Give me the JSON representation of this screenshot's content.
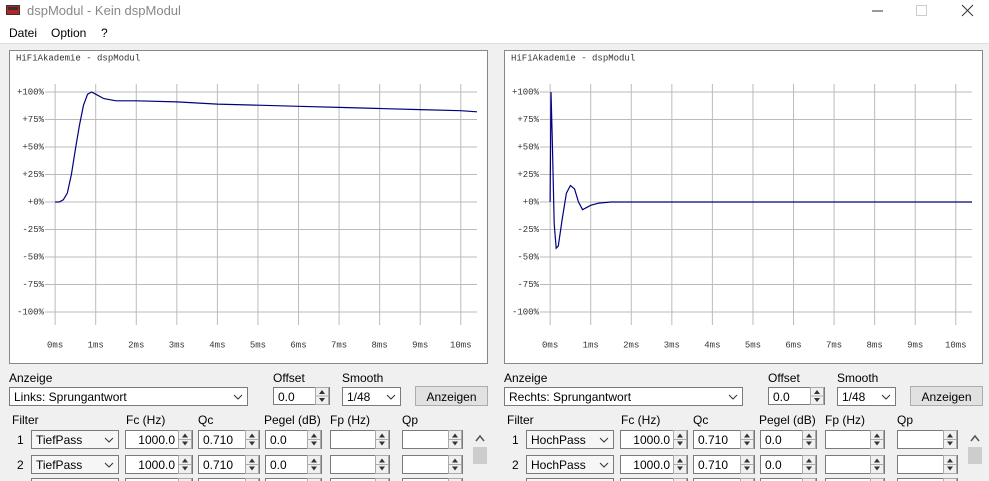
{
  "window": {
    "title": "dspModul - Kein dspModul"
  },
  "menu": [
    "Datei",
    "Option",
    "?"
  ],
  "chart_data": [
    {
      "type": "line",
      "title": "HiFiAkademie - dspModul",
      "color": "#000080",
      "grid": true,
      "x": [
        0,
        0.1,
        0.2,
        0.3,
        0.4,
        0.5,
        0.6,
        0.7,
        0.8,
        0.9,
        1.0,
        1.2,
        1.5,
        2,
        3,
        4,
        5,
        6,
        7,
        8,
        9,
        10,
        10.4
      ],
      "values": [
        0,
        0,
        2,
        8,
        25,
        48,
        70,
        88,
        98,
        100,
        98,
        94,
        92,
        92,
        91,
        89,
        88,
        87,
        86,
        85,
        84,
        83,
        82
      ],
      "xlim": [
        -0.25,
        10.4
      ],
      "ylim": [
        -110,
        110
      ],
      "xticks": [
        {
          "value": 0,
          "label": "0ms"
        },
        {
          "value": 1,
          "label": "1ms"
        },
        {
          "value": 2,
          "label": "2ms"
        },
        {
          "value": 3,
          "label": "3ms"
        },
        {
          "value": 4,
          "label": "4ms"
        },
        {
          "value": 5,
          "label": "5ms"
        },
        {
          "value": 6,
          "label": "6ms"
        },
        {
          "value": 7,
          "label": "7ms"
        },
        {
          "value": 8,
          "label": "8ms"
        },
        {
          "value": 9,
          "label": "9ms"
        },
        {
          "value": 10,
          "label": "10ms"
        }
      ],
      "yticks": [
        {
          "value": 100,
          "label": "+100%"
        },
        {
          "value": 75,
          "label": "+75%"
        },
        {
          "value": 50,
          "label": "+50%"
        },
        {
          "value": 25,
          "label": "+25%"
        },
        {
          "value": 0,
          "label": "+0%"
        },
        {
          "value": -25,
          "label": "-25%"
        },
        {
          "value": -50,
          "label": "-50%"
        },
        {
          "value": -75,
          "label": "-75%"
        },
        {
          "value": -100,
          "label": "-100%"
        }
      ]
    },
    {
      "type": "line",
      "title": "HiFiAkademie - dspModul",
      "color": "#000080",
      "grid": true,
      "x": [
        0,
        0.02,
        0.05,
        0.1,
        0.15,
        0.2,
        0.3,
        0.4,
        0.5,
        0.6,
        0.7,
        0.8,
        1.0,
        1.2,
        1.5,
        3,
        5,
        7,
        9,
        10.4
      ],
      "values": [
        0,
        100,
        60,
        -20,
        -42,
        -40,
        -15,
        8,
        15,
        12,
        0,
        -7,
        -3,
        -1,
        0,
        0,
        0,
        0,
        0,
        0
      ],
      "xlim": [
        -0.25,
        10.4
      ],
      "ylim": [
        -110,
        110
      ],
      "xticks": [
        {
          "value": 0,
          "label": "0ms"
        },
        {
          "value": 1,
          "label": "1ms"
        },
        {
          "value": 2,
          "label": "2ms"
        },
        {
          "value": 3,
          "label": "3ms"
        },
        {
          "value": 4,
          "label": "4ms"
        },
        {
          "value": 5,
          "label": "5ms"
        },
        {
          "value": 6,
          "label": "6ms"
        },
        {
          "value": 7,
          "label": "7ms"
        },
        {
          "value": 8,
          "label": "8ms"
        },
        {
          "value": 9,
          "label": "9ms"
        },
        {
          "value": 10,
          "label": "10ms"
        }
      ],
      "yticks": [
        {
          "value": 100,
          "label": "+100%"
        },
        {
          "value": 75,
          "label": "+75%"
        },
        {
          "value": 50,
          "label": "+50%"
        },
        {
          "value": 25,
          "label": "+25%"
        },
        {
          "value": 0,
          "label": "+0%"
        },
        {
          "value": -25,
          "label": "-25%"
        },
        {
          "value": -50,
          "label": "-50%"
        },
        {
          "value": -75,
          "label": "-75%"
        },
        {
          "value": -100,
          "label": "-100%"
        }
      ]
    }
  ],
  "panels": [
    {
      "anzeige_label": "Anzeige",
      "anzeige": "Links: Sprungantwort",
      "offset_label": "Offset",
      "offset": "0.0",
      "smooth_label": "Smooth",
      "smooth": "1/48",
      "button": "Anzeigen",
      "filter_headers": [
        "Filter",
        "Fc (Hz)",
        "Qc",
        "Pegel (dB)",
        "Fp (Hz)",
        "Qp"
      ],
      "filters": [
        {
          "index": "1",
          "type": "TiefPass",
          "fc": "1000.0",
          "qc": "0.710",
          "pegel": "0.0"
        },
        {
          "index": "2",
          "type": "TiefPass",
          "fc": "1000.0",
          "qc": "0.710",
          "pegel": "0.0"
        }
      ]
    },
    {
      "anzeige_label": "Anzeige",
      "anzeige": "Rechts: Sprungantwort",
      "offset_label": "Offset",
      "offset": "0.0",
      "smooth_label": "Smooth",
      "smooth": "1/48",
      "button": "Anzeigen",
      "filter_headers": [
        "Filter",
        "Fc (Hz)",
        "Qc",
        "Pegel (dB)",
        "Fp (Hz)",
        "Qp"
      ],
      "filters": [
        {
          "index": "1",
          "type": "HochPass",
          "fc": "1000.0",
          "qc": "0.710",
          "pegel": "0.0"
        },
        {
          "index": "2",
          "type": "HochPass",
          "fc": "1000.0",
          "qc": "0.710",
          "pegel": "0.0"
        }
      ]
    }
  ]
}
